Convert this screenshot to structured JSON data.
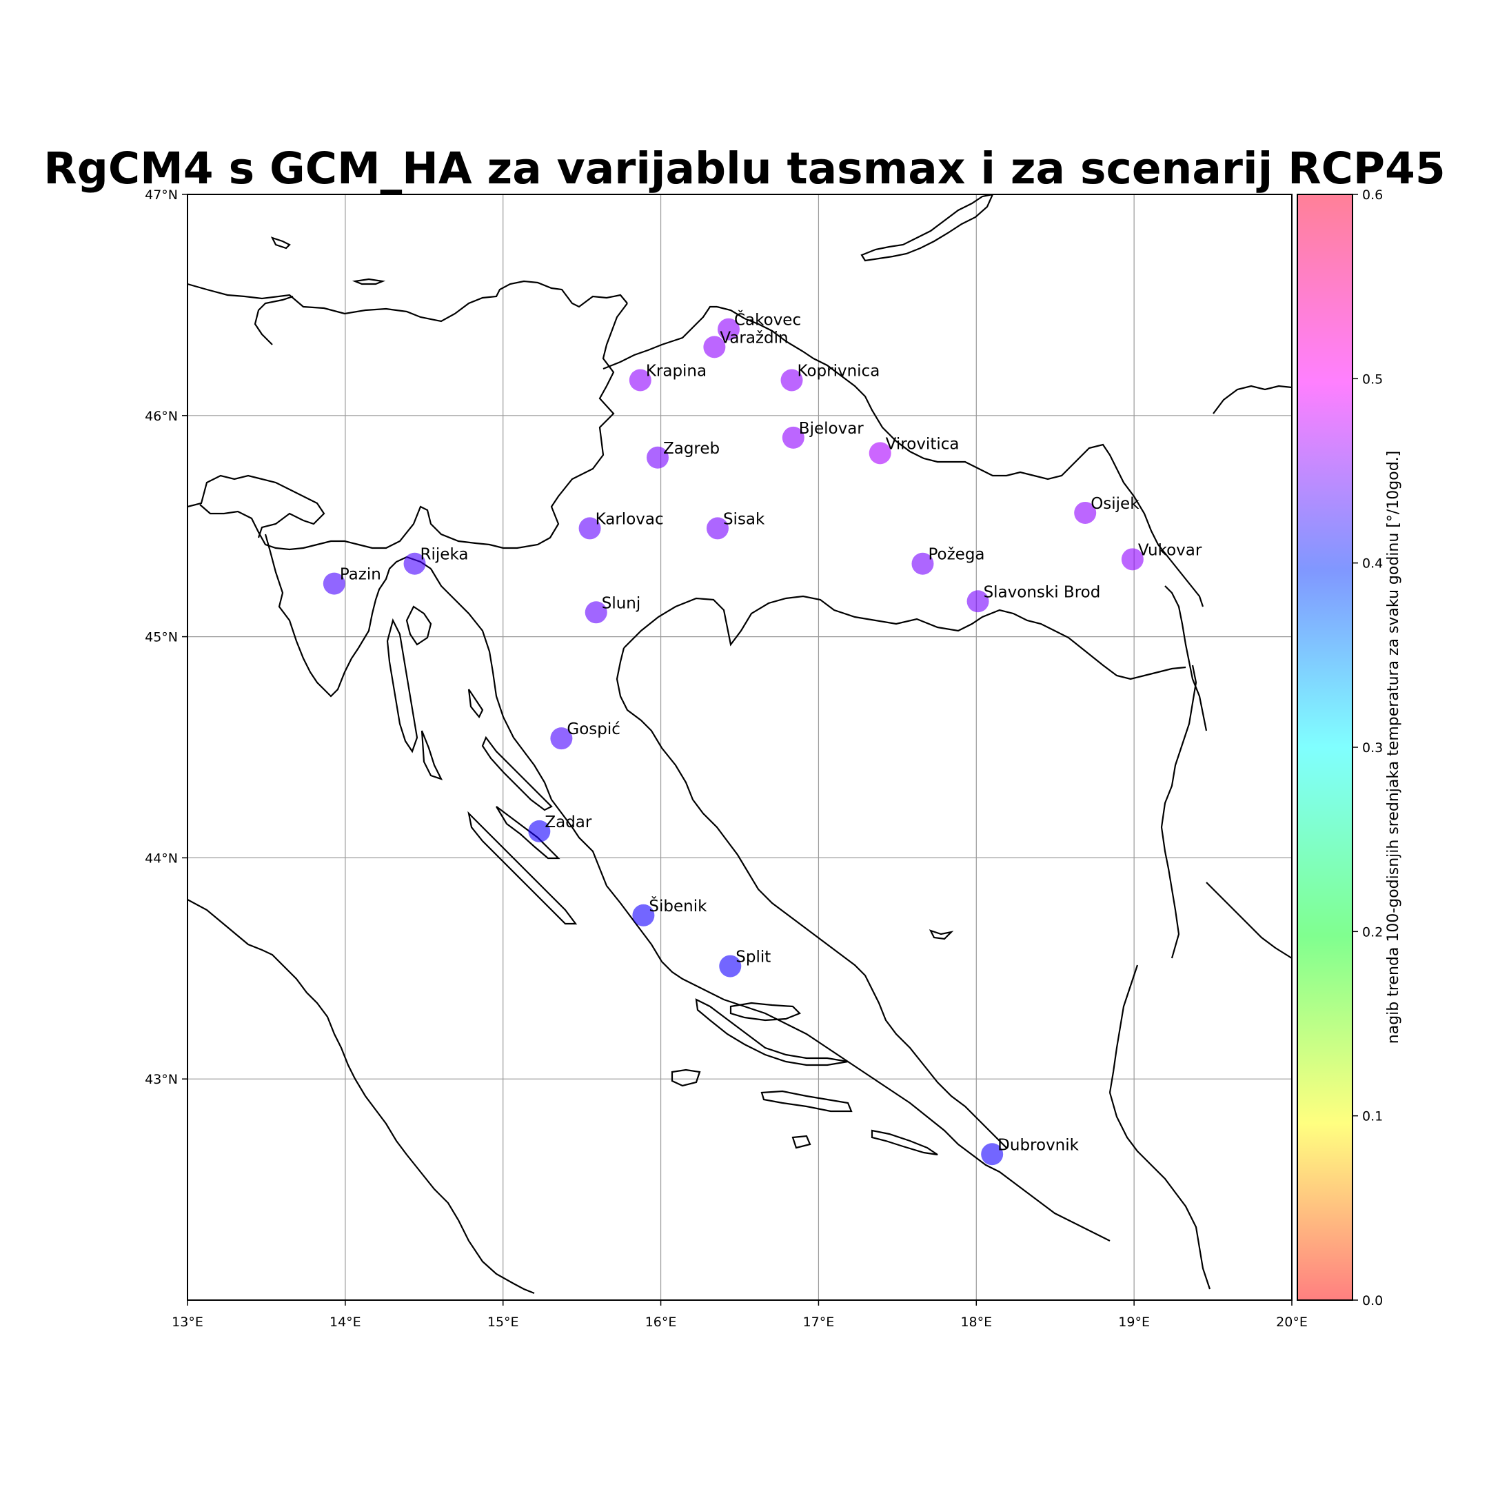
{
  "title": "RgCM4 s GCM_HA za varijablu tasmax i za scenarij RCP45",
  "map": {
    "lon_range": [
      13,
      20
    ],
    "lat_range": [
      42,
      47
    ],
    "x_ticks": [
      {
        "value": 13,
        "label": "13°E"
      },
      {
        "value": 14,
        "label": "14°E"
      },
      {
        "value": 15,
        "label": "15°E"
      },
      {
        "value": 16,
        "label": "16°E"
      },
      {
        "value": 17,
        "label": "17°E"
      },
      {
        "value": 18,
        "label": "18°E"
      },
      {
        "value": 19,
        "label": "19°E"
      },
      {
        "value": 20,
        "label": "20°E"
      }
    ],
    "y_ticks": [
      {
        "value": 43,
        "label": "43°N"
      },
      {
        "value": 44,
        "label": "44°N"
      },
      {
        "value": 45,
        "label": "45°N"
      },
      {
        "value": 46,
        "label": "46°N"
      },
      {
        "value": 47,
        "label": "47°N"
      }
    ],
    "grid": true,
    "point_opacity": 0.6
  },
  "colorbar": {
    "label": "nagib trenda 100-godisnjih srednjaka temperatura za svaku godinu [°/10god.]",
    "min": 0.0,
    "max": 0.6,
    "ticks": [
      {
        "value": 0.0,
        "label": "0.0"
      },
      {
        "value": 0.1,
        "label": "0.1"
      },
      {
        "value": 0.2,
        "label": "0.2"
      },
      {
        "value": 0.3,
        "label": "0.3"
      },
      {
        "value": 0.4,
        "label": "0.4"
      },
      {
        "value": 0.5,
        "label": "0.5"
      },
      {
        "value": 0.6,
        "label": "0.6"
      }
    ],
    "colormap": "gist_rainbow_r"
  },
  "chart_data": {
    "type": "scatter",
    "title": "RgCM4 s GCM_HA za varijablu tasmax i za scenarij RCP45",
    "xlim": [
      13,
      20
    ],
    "ylim": [
      42,
      47
    ],
    "points": [
      {
        "name": "Čakovec",
        "lon": 16.43,
        "lat": 46.39,
        "value": 0.47
      },
      {
        "name": "Varaždin",
        "lon": 16.34,
        "lat": 46.31,
        "value": 0.47
      },
      {
        "name": "Krapina",
        "lon": 15.87,
        "lat": 46.16,
        "value": 0.47
      },
      {
        "name": "Koprivnica",
        "lon": 16.83,
        "lat": 46.16,
        "value": 0.47
      },
      {
        "name": "Bjelovar",
        "lon": 16.84,
        "lat": 45.9,
        "value": 0.47
      },
      {
        "name": "Virovitica",
        "lon": 17.39,
        "lat": 45.83,
        "value": 0.48
      },
      {
        "name": "Zagreb",
        "lon": 15.98,
        "lat": 45.81,
        "value": 0.46
      },
      {
        "name": "Karlovac",
        "lon": 15.55,
        "lat": 45.49,
        "value": 0.45
      },
      {
        "name": "Sisak",
        "lon": 16.36,
        "lat": 45.49,
        "value": 0.46
      },
      {
        "name": "Osijek",
        "lon": 18.69,
        "lat": 45.56,
        "value": 0.47
      },
      {
        "name": "Vukovar",
        "lon": 18.99,
        "lat": 45.35,
        "value": 0.47
      },
      {
        "name": "Požega",
        "lon": 17.66,
        "lat": 45.33,
        "value": 0.46
      },
      {
        "name": "Slavonski Brod",
        "lon": 18.01,
        "lat": 45.16,
        "value": 0.46
      },
      {
        "name": "Rijeka",
        "lon": 14.44,
        "lat": 45.33,
        "value": 0.44
      },
      {
        "name": "Pazin",
        "lon": 13.93,
        "lat": 45.24,
        "value": 0.44
      },
      {
        "name": "Slunj",
        "lon": 15.59,
        "lat": 45.11,
        "value": 0.45
      },
      {
        "name": "Gospić",
        "lon": 15.37,
        "lat": 44.54,
        "value": 0.44
      },
      {
        "name": "Zadar",
        "lon": 15.23,
        "lat": 44.12,
        "value": 0.42
      },
      {
        "name": "Šibenik",
        "lon": 15.89,
        "lat": 43.74,
        "value": 0.42
      },
      {
        "name": "Split",
        "lon": 16.44,
        "lat": 43.51,
        "value": 0.42
      },
      {
        "name": "Dubrovnik",
        "lon": 18.1,
        "lat": 42.66,
        "value": 0.42
      }
    ]
  }
}
